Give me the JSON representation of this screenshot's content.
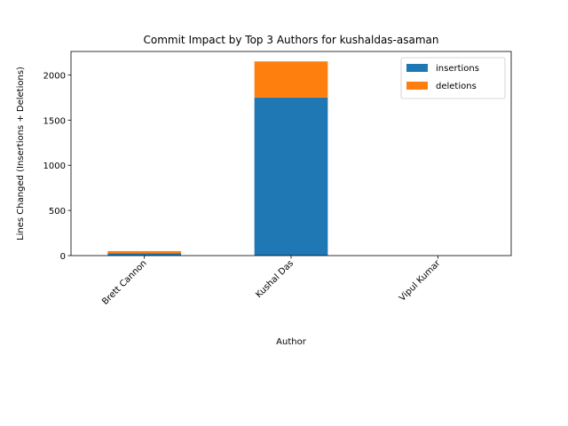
{
  "chart_data": {
    "type": "bar",
    "stacked": true,
    "title": "Commit Impact by Top 3 Authors for kushaldas-asaman",
    "xlabel": "Author",
    "ylabel": "Lines Changed (Insertions + Deletions)",
    "categories": [
      "Brett Cannon",
      "Kushal Das",
      "Vipul Kumar"
    ],
    "series": [
      {
        "name": "insertions",
        "color": "#1f77b4",
        "values": [
          25,
          1750,
          0
        ]
      },
      {
        "name": "deletions",
        "color": "#ff7f0e",
        "values": [
          25,
          400,
          0
        ]
      }
    ],
    "ylim": [
      0,
      2260
    ],
    "yticks": [
      0,
      500,
      1000,
      1500,
      2000
    ],
    "legend": "top-right",
    "grid": false,
    "x_tick_rotation": 45
  }
}
